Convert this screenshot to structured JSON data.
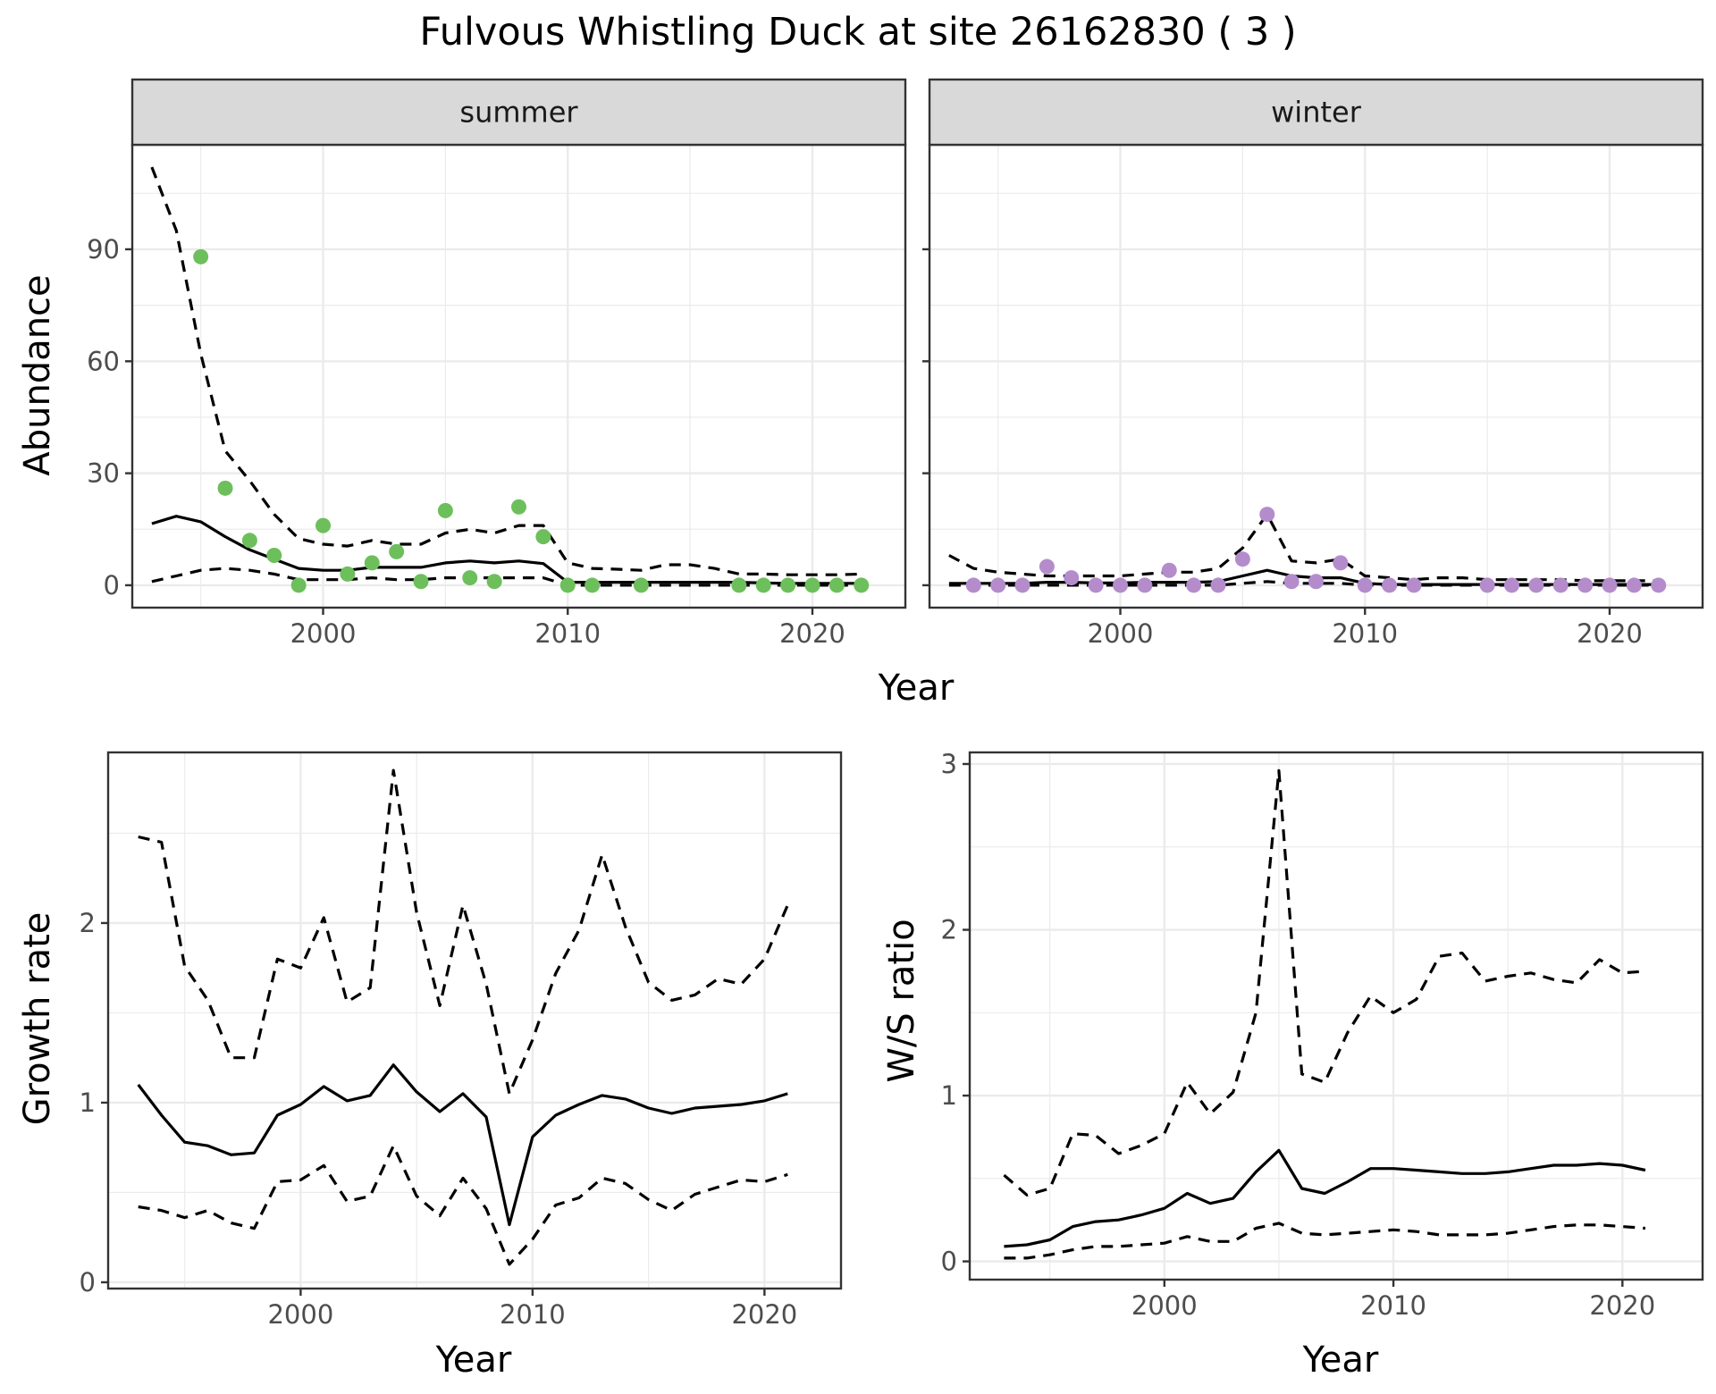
{
  "title": "Fulvous Whistling Duck at site 26162830 ( 3 )",
  "colors": {
    "summer_points": "#6dbf5c",
    "winter_points": "#b48ccb",
    "lines": "#000000",
    "grid": "#ebebeb",
    "strip_bg": "#d9d9d9",
    "panel_border": "#333333"
  },
  "chart_data": [
    {
      "type": "line",
      "panel": "summer",
      "strip_label": "summer",
      "xlabel": "Year",
      "ylabel": "Abundance",
      "xlim": [
        1992.2,
        2023.8
      ],
      "ylim": [
        -6,
        118
      ],
      "x_ticks": [
        2000,
        2010,
        2020
      ],
      "y_ticks": [
        0,
        30,
        60,
        90
      ],
      "grid": true,
      "points": {
        "x": [
          1995,
          1996,
          1997,
          1998,
          1999,
          2000,
          2001,
          2002,
          2003,
          2004,
          2005,
          2006,
          2007,
          2008,
          2009,
          2010,
          2011,
          2013,
          2017,
          2018,
          2019,
          2020,
          2021,
          2022
        ],
        "y": [
          88,
          26,
          12,
          8,
          0,
          16,
          3,
          6,
          9,
          1,
          20,
          2,
          1,
          21,
          13,
          0,
          0,
          0,
          0,
          0,
          0,
          0,
          0,
          0
        ]
      },
      "series": [
        {
          "style": "solid",
          "x": [
            1993,
            1994,
            1995,
            1996,
            1997,
            1998,
            1999,
            2000,
            2001,
            2002,
            2003,
            2004,
            2005,
            2006,
            2007,
            2008,
            2009,
            2010,
            2011,
            2012,
            2013,
            2014,
            2015,
            2016,
            2017,
            2018,
            2019,
            2020,
            2021,
            2022
          ],
          "values": [
            16.5,
            18.5,
            17,
            13,
            9.5,
            7,
            4.5,
            4,
            4,
            4.8,
            4.8,
            4.8,
            6,
            6.5,
            6,
            6.5,
            5.8,
            0.8,
            0.8,
            0.8,
            0.8,
            0.8,
            0.8,
            0.8,
            0.8,
            0.6,
            0.5,
            0.5,
            0.5,
            0.5
          ]
        },
        {
          "style": "dashed",
          "x": [
            1993,
            1994,
            1995,
            1996,
            1997,
            1998,
            1999,
            2000,
            2001,
            2002,
            2003,
            2004,
            2005,
            2006,
            2007,
            2008,
            2009,
            2010,
            2011,
            2012,
            2013,
            2014,
            2015,
            2016,
            2017,
            2018,
            2019,
            2020,
            2021,
            2022
          ],
          "values": [
            112,
            95,
            62,
            36,
            28,
            19,
            12.5,
            11,
            10.5,
            12,
            11,
            11,
            14,
            15,
            14,
            16,
            16,
            6,
            4.5,
            4.3,
            4,
            5.5,
            5.5,
            4.5,
            3,
            3,
            2.8,
            2.8,
            2.8,
            3
          ]
        },
        {
          "style": "dashed",
          "x": [
            1993,
            1994,
            1995,
            1996,
            1997,
            1998,
            1999,
            2000,
            2001,
            2002,
            2003,
            2004,
            2005,
            2006,
            2007,
            2008,
            2009,
            2010,
            2011,
            2012,
            2013,
            2014,
            2015,
            2016,
            2017,
            2018,
            2019,
            2020,
            2021,
            2022
          ],
          "values": [
            1,
            2.5,
            4,
            4.5,
            4,
            3,
            1.5,
            1.5,
            1.5,
            2,
            1.5,
            1.5,
            2,
            2,
            2,
            2,
            2,
            0,
            0,
            0,
            0,
            0,
            0,
            0,
            0,
            0,
            0,
            0,
            0,
            0
          ]
        }
      ]
    },
    {
      "type": "line",
      "panel": "winter",
      "strip_label": "winter",
      "xlabel": "Year",
      "ylabel": "Abundance",
      "xlim": [
        1992.2,
        2023.8
      ],
      "ylim": [
        -6,
        118
      ],
      "x_ticks": [
        2000,
        2010,
        2020
      ],
      "y_ticks": [
        0,
        30,
        60,
        90
      ],
      "grid": true,
      "points": {
        "x": [
          1994,
          1995,
          1996,
          1997,
          1998,
          1999,
          2000,
          2001,
          2002,
          2003,
          2004,
          2005,
          2006,
          2007,
          2008,
          2009,
          2010,
          2011,
          2012,
          2015,
          2016,
          2017,
          2018,
          2019,
          2020,
          2021,
          2022
        ],
        "y": [
          0,
          0,
          0,
          5,
          2,
          0,
          0,
          0,
          4,
          0,
          0,
          7,
          19,
          1,
          1,
          6,
          0,
          0,
          0,
          0,
          0,
          0,
          0,
          0,
          0,
          0,
          0
        ]
      },
      "series": [
        {
          "style": "solid",
          "x": [
            1993,
            1994,
            1995,
            1996,
            1997,
            1998,
            1999,
            2000,
            2001,
            2002,
            2003,
            2004,
            2005,
            2006,
            2007,
            2008,
            2009,
            2010,
            2011,
            2012,
            2013,
            2014,
            2015,
            2016,
            2017,
            2018,
            2019,
            2020,
            2021,
            2022
          ],
          "values": [
            0.5,
            0.5,
            0.5,
            0.5,
            0.8,
            0.8,
            0.6,
            0.6,
            0.8,
            0.8,
            0.8,
            1,
            2.5,
            4,
            2.5,
            2,
            2,
            0.5,
            0.2,
            0.2,
            0.2,
            0.2,
            0.2,
            0.2,
            0.2,
            0.2,
            0.2,
            0.2,
            0.2,
            0.2
          ]
        },
        {
          "style": "dashed",
          "x": [
            1993,
            1994,
            1995,
            1996,
            1997,
            1998,
            1999,
            2000,
            2001,
            2002,
            2003,
            2004,
            2005,
            2006,
            2007,
            2008,
            2009,
            2010,
            2011,
            2012,
            2013,
            2014,
            2015,
            2016,
            2017,
            2018,
            2019,
            2020,
            2021,
            2022
          ],
          "values": [
            8,
            4.5,
            3.5,
            3,
            2.5,
            2.5,
            2.5,
            2.5,
            3,
            3.5,
            3.5,
            4.5,
            10,
            19,
            6.5,
            6,
            7,
            2.5,
            2,
            1.5,
            2,
            2,
            1.5,
            1.5,
            1.5,
            1.5,
            1.2,
            1.2,
            1.2,
            1.2
          ]
        },
        {
          "style": "dashed",
          "x": [
            1993,
            1994,
            1995,
            1996,
            1997,
            1998,
            1999,
            2000,
            2001,
            2002,
            2003,
            2004,
            2005,
            2006,
            2007,
            2008,
            2009,
            2010,
            2011,
            2012,
            2013,
            2014,
            2015,
            2016,
            2017,
            2018,
            2019,
            2020,
            2021,
            2022
          ],
          "values": [
            0,
            0,
            0,
            0,
            0,
            0,
            0,
            0,
            0,
            0,
            0,
            0,
            0.5,
            1,
            0.5,
            0.5,
            0.5,
            0,
            0,
            0,
            0,
            0,
            0,
            0,
            0,
            0,
            0,
            0,
            0,
            0
          ]
        }
      ]
    },
    {
      "type": "line",
      "panel": "growth",
      "xlabel": "Year",
      "ylabel": "Growth rate",
      "xlim": [
        1991.7,
        2023.3
      ],
      "ylim": [
        -0.035,
        2.95
      ],
      "x_ticks": [
        2000,
        2010,
        2020
      ],
      "y_ticks": [
        0,
        1,
        2
      ],
      "grid": true,
      "series": [
        {
          "style": "solid",
          "x": [
            1993,
            1994,
            1995,
            1996,
            1997,
            1998,
            1999,
            2000,
            2001,
            2002,
            2003,
            2004,
            2005,
            2006,
            2007,
            2008,
            2009,
            2010,
            2011,
            2012,
            2013,
            2014,
            2015,
            2016,
            2017,
            2018,
            2019,
            2020,
            2021
          ],
          "values": [
            1.1,
            0.93,
            0.78,
            0.76,
            0.71,
            0.72,
            0.93,
            0.99,
            1.09,
            1.01,
            1.04,
            1.21,
            1.06,
            0.95,
            1.05,
            0.92,
            0.32,
            0.81,
            0.93,
            0.99,
            1.04,
            1.02,
            0.97,
            0.94,
            0.97,
            0.98,
            0.99,
            1.01,
            1.05
          ]
        },
        {
          "style": "dashed",
          "x": [
            1993,
            1994,
            1995,
            1996,
            1997,
            1998,
            1999,
            2000,
            2001,
            2002,
            2003,
            2004,
            2005,
            2006,
            2007,
            2008,
            2009,
            2010,
            2011,
            2012,
            2013,
            2014,
            2015,
            2016,
            2017,
            2018,
            2019,
            2020,
            2021
          ],
          "values": [
            2.48,
            2.45,
            1.76,
            1.57,
            1.25,
            1.25,
            1.8,
            1.75,
            2.03,
            1.56,
            1.64,
            2.85,
            2.06,
            1.54,
            2.1,
            1.66,
            1.05,
            1.35,
            1.72,
            1.96,
            2.38,
            1.98,
            1.67,
            1.57,
            1.6,
            1.69,
            1.66,
            1.8,
            2.1
          ]
        },
        {
          "style": "dashed",
          "x": [
            1993,
            1994,
            1995,
            1996,
            1997,
            1998,
            1999,
            2000,
            2001,
            2002,
            2003,
            2004,
            2005,
            2006,
            2007,
            2008,
            2009,
            2010,
            2011,
            2012,
            2013,
            2014,
            2015,
            2016,
            2017,
            2018,
            2019,
            2020,
            2021
          ],
          "values": [
            0.42,
            0.4,
            0.36,
            0.4,
            0.33,
            0.3,
            0.56,
            0.57,
            0.65,
            0.45,
            0.48,
            0.76,
            0.48,
            0.37,
            0.58,
            0.41,
            0.1,
            0.24,
            0.43,
            0.47,
            0.58,
            0.55,
            0.46,
            0.4,
            0.49,
            0.53,
            0.57,
            0.56,
            0.6
          ]
        }
      ]
    },
    {
      "type": "line",
      "panel": "ws_ratio",
      "xlabel": "Year",
      "ylabel": "W/S ratio",
      "xlim": [
        1991.5,
        2023.5
      ],
      "ylim": [
        -0.11,
        3.07
      ],
      "x_ticks": [
        2000,
        2010,
        2020
      ],
      "y_ticks": [
        0,
        1,
        2,
        3
      ],
      "grid": true,
      "series": [
        {
          "style": "solid",
          "x": [
            1993,
            1994,
            1995,
            1996,
            1997,
            1998,
            1999,
            2000,
            2001,
            2002,
            2003,
            2004,
            2005,
            2006,
            2007,
            2008,
            2009,
            2010,
            2011,
            2012,
            2013,
            2014,
            2015,
            2016,
            2017,
            2018,
            2019,
            2020,
            2021
          ],
          "values": [
            0.09,
            0.1,
            0.13,
            0.21,
            0.24,
            0.25,
            0.28,
            0.32,
            0.41,
            0.35,
            0.38,
            0.54,
            0.67,
            0.44,
            0.41,
            0.48,
            0.56,
            0.56,
            0.55,
            0.54,
            0.53,
            0.53,
            0.54,
            0.56,
            0.58,
            0.58,
            0.59,
            0.58,
            0.55
          ]
        },
        {
          "style": "dashed",
          "x": [
            1993,
            1994,
            1995,
            1996,
            1997,
            1998,
            1999,
            2000,
            2001,
            2002,
            2003,
            2004,
            2005,
            2006,
            2007,
            2008,
            2009,
            2010,
            2011,
            2012,
            2013,
            2014,
            2015,
            2016,
            2017,
            2018,
            2019,
            2020,
            2021
          ],
          "values": [
            0.52,
            0.4,
            0.44,
            0.77,
            0.76,
            0.65,
            0.7,
            0.77,
            1.08,
            0.89,
            1.02,
            1.5,
            2.96,
            1.13,
            1.08,
            1.38,
            1.6,
            1.5,
            1.58,
            1.84,
            1.86,
            1.69,
            1.72,
            1.74,
            1.7,
            1.68,
            1.82,
            1.74,
            1.75
          ]
        },
        {
          "style": "dashed",
          "x": [
            1993,
            1994,
            1995,
            1996,
            1997,
            1998,
            1999,
            2000,
            2001,
            2002,
            2003,
            2004,
            2005,
            2006,
            2007,
            2008,
            2009,
            2010,
            2011,
            2012,
            2013,
            2014,
            2015,
            2016,
            2017,
            2018,
            2019,
            2020,
            2021
          ],
          "values": [
            0.02,
            0.02,
            0.04,
            0.07,
            0.09,
            0.09,
            0.1,
            0.11,
            0.15,
            0.12,
            0.12,
            0.2,
            0.23,
            0.17,
            0.16,
            0.17,
            0.18,
            0.19,
            0.18,
            0.16,
            0.16,
            0.16,
            0.17,
            0.19,
            0.21,
            0.22,
            0.22,
            0.21,
            0.2
          ]
        }
      ]
    }
  ]
}
